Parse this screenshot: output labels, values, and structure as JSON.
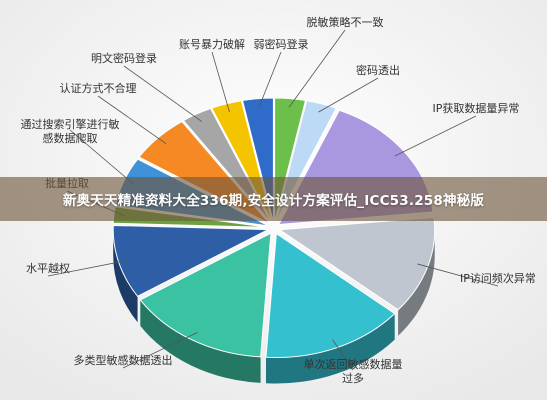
{
  "banner": {
    "text": "新奥天天精准资料大全336期,安全设计方案评估_ICC53.258神秘版"
  },
  "chart_data": {
    "type": "pie",
    "style": "3d-exploded",
    "title": "",
    "slices": [
      {
        "label": "脱敏策略不一致",
        "value": 3,
        "color": "#6cbf4a"
      },
      {
        "label": "密码透出",
        "value": 3,
        "color": "#bcd9f5"
      },
      {
        "label": "IP获取数据量异常",
        "value": 16,
        "color": "#a998e0"
      },
      {
        "label": "IP访问频次异常",
        "value": 12,
        "color": "#bfc6cf"
      },
      {
        "label": "单次返回敏感数据量过多",
        "value": 14,
        "color": "#35c0d0"
      },
      {
        "label": "多类型敏感数据透出",
        "value": 14,
        "color": "#3ac2a2"
      },
      {
        "label": "水平越权",
        "value": 9,
        "color": "#2e5fa6"
      },
      {
        "label": "批量拉取",
        "value": 2,
        "color": "#6aa23d"
      },
      {
        "label": "通过搜索引擎进行敏感数据爬取",
        "value": 6,
        "color": "#3f92d8"
      },
      {
        "label": "认证方式不合理",
        "value": 6,
        "color": "#f58a25"
      },
      {
        "label": "明文密码登录",
        "value": 3,
        "color": "#a6a6a6"
      },
      {
        "label": "账号暴力破解",
        "value": 3,
        "color": "#f5c400"
      },
      {
        "label": "弱密码登录",
        "value": 3,
        "color": "#2f6bc8"
      }
    ]
  }
}
